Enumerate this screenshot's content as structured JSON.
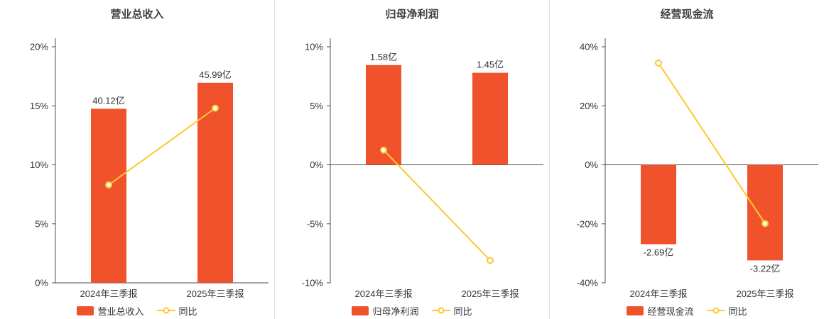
{
  "theme": {
    "bar_color": "#f0532b",
    "line_color": "#fdc82d",
    "axis_color": "#4c4c4c",
    "divider_color": "#e2e2e2",
    "text_color": "#333333"
  },
  "chart_data": [
    {
      "type": "bar",
      "title": "营业总收入",
      "categories": [
        "2024年三季报",
        "2025年三季报"
      ],
      "ylim": [
        0,
        20
      ],
      "yticks": [
        0,
        5,
        10,
        15,
        20
      ],
      "ytick_labels": [
        "0%",
        "5%",
        "10%",
        "15%",
        "20%"
      ],
      "grid": false,
      "legend_position": "bottom",
      "series": [
        {
          "name": "营业总收入",
          "type": "bar",
          "labels": [
            "40.12亿",
            "45.99亿"
          ],
          "values_pct": [
            14.75,
            16.95
          ]
        },
        {
          "name": "同比",
          "type": "line",
          "values_pct": [
            8.3,
            14.8
          ]
        }
      ]
    },
    {
      "type": "bar",
      "title": "归母净利润",
      "categories": [
        "2024年三季报",
        "2025年三季报"
      ],
      "ylim": [
        -10,
        10
      ],
      "yticks": [
        -10,
        -5,
        0,
        5,
        10
      ],
      "ytick_labels": [
        "-10%",
        "-5%",
        "0%",
        "5%",
        "10%"
      ],
      "grid": false,
      "legend_position": "bottom",
      "series": [
        {
          "name": "归母净利润",
          "type": "bar",
          "labels": [
            "1.58亿",
            "1.45亿"
          ],
          "values_pct": [
            8.45,
            7.8
          ]
        },
        {
          "name": "同比",
          "type": "line",
          "values_pct": [
            1.25,
            -8.1
          ]
        }
      ]
    },
    {
      "type": "bar",
      "title": "经营现金流",
      "categories": [
        "2024年三季报",
        "2025年三季报"
      ],
      "ylim": [
        -40,
        40
      ],
      "yticks": [
        -40,
        -20,
        0,
        20,
        40
      ],
      "ytick_labels": [
        "-40%",
        "-20%",
        "0%",
        "20%",
        "40%"
      ],
      "grid": false,
      "legend_position": "bottom",
      "series": [
        {
          "name": "经营现金流",
          "type": "bar",
          "labels": [
            "-2.69亿",
            "-3.22亿"
          ],
          "values_pct": [
            -26.9,
            -32.4
          ]
        },
        {
          "name": "同比",
          "type": "line",
          "values_pct": [
            34.5,
            -19.9
          ]
        }
      ]
    }
  ]
}
